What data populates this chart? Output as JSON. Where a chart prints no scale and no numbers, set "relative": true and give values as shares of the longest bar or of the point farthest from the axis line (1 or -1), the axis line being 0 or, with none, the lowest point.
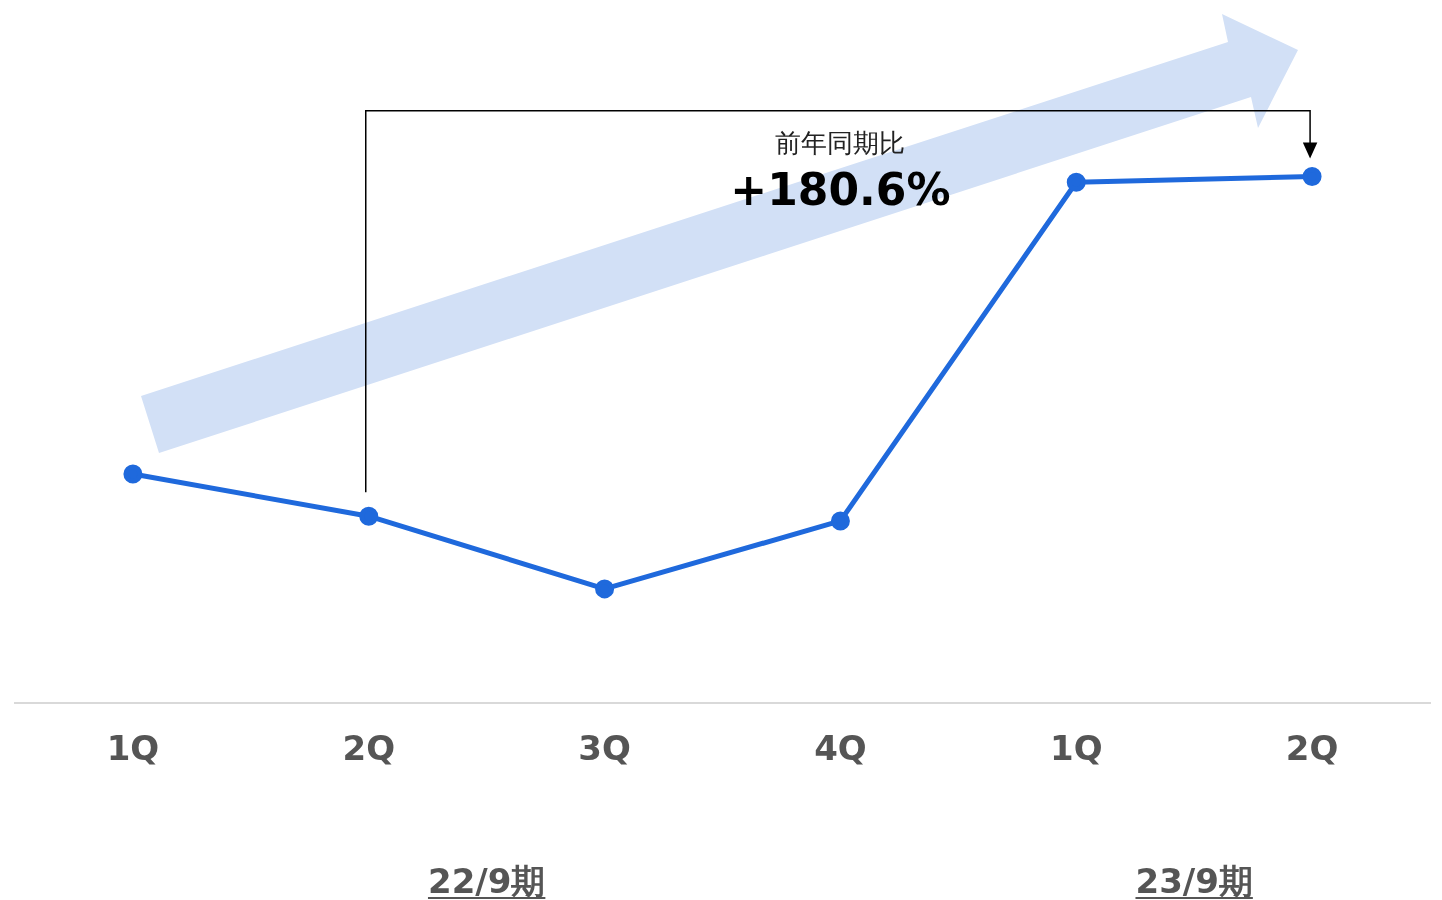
{
  "chart_data": {
    "type": "line",
    "categories": [
      "1Q",
      "2Q",
      "3Q",
      "4Q",
      "1Q",
      "2Q"
    ],
    "relative": true,
    "series": [
      {
        "color": "#1f69dc",
        "values": [
          0.435,
          0.355,
          0.217,
          0.346,
          0.989,
          1
        ]
      }
    ],
    "marker": "circle",
    "grid": false,
    "legend": false,
    "annotations": [
      "前年同期比",
      "+180.6%",
      "22/9期",
      "23/9期"
    ]
  }
}
